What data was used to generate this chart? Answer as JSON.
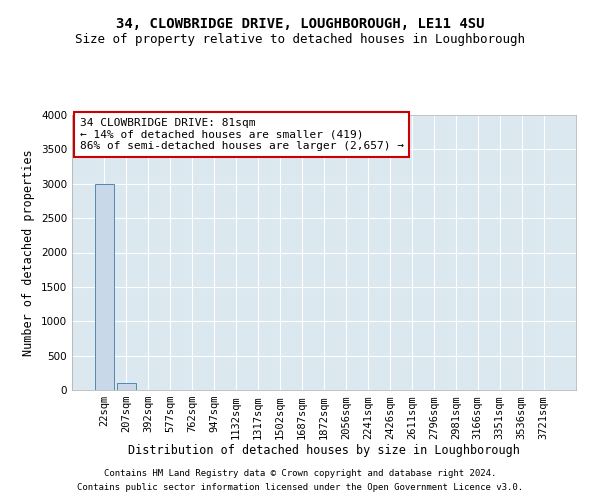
{
  "title": "34, CLOWBRIDGE DRIVE, LOUGHBOROUGH, LE11 4SU",
  "subtitle": "Size of property relative to detached houses in Loughborough",
  "xlabel": "Distribution of detached houses by size in Loughborough",
  "ylabel": "Number of detached properties",
  "bar_labels": [
    "22sqm",
    "207sqm",
    "392sqm",
    "577sqm",
    "762sqm",
    "947sqm",
    "1132sqm",
    "1317sqm",
    "1502sqm",
    "1687sqm",
    "1872sqm",
    "2056sqm",
    "2241sqm",
    "2426sqm",
    "2611sqm",
    "2796sqm",
    "2981sqm",
    "3166sqm",
    "3351sqm",
    "3536sqm",
    "3721sqm"
  ],
  "bar_values": [
    3000,
    100,
    5,
    2,
    1,
    1,
    0,
    0,
    0,
    0,
    0,
    0,
    0,
    0,
    0,
    0,
    0,
    0,
    0,
    0,
    0
  ],
  "bar_color": "#c8d8e8",
  "bar_edge_color": "#5588aa",
  "ylim": [
    0,
    4000
  ],
  "yticks": [
    0,
    500,
    1000,
    1500,
    2000,
    2500,
    3000,
    3500,
    4000
  ],
  "background_color": "#dce8f0",
  "annotation_text": "34 CLOWBRIDGE DRIVE: 81sqm\n← 14% of detached houses are smaller (419)\n86% of semi-detached houses are larger (2,657) →",
  "annotation_box_color": "#ffffff",
  "annotation_border_color": "#cc0000",
  "footer_line1": "Contains HM Land Registry data © Crown copyright and database right 2024.",
  "footer_line2": "Contains public sector information licensed under the Open Government Licence v3.0.",
  "title_fontsize": 10,
  "subtitle_fontsize": 9,
  "axis_label_fontsize": 8.5,
  "tick_fontsize": 7.5,
  "annotation_fontsize": 8,
  "footer_fontsize": 6.5
}
